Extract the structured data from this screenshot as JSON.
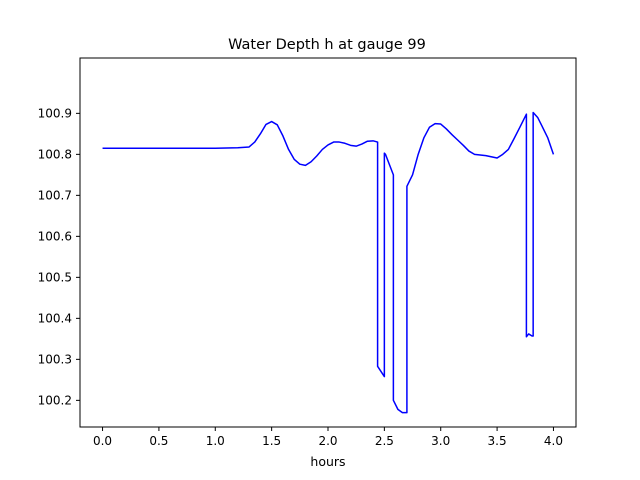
{
  "chart_data": {
    "type": "line",
    "title": "Water Depth h at gauge 99",
    "xlabel": "hours",
    "ylabel": "",
    "xlim": [
      -0.2,
      4.2
    ],
    "ylim": [
      100.135,
      101.035
    ],
    "x_ticks": [
      0.0,
      0.5,
      1.0,
      1.5,
      2.0,
      2.5,
      3.0,
      3.5,
      4.0
    ],
    "x_tick_labels": [
      "0.0",
      "0.5",
      "1.0",
      "1.5",
      "2.0",
      "2.5",
      "3.0",
      "3.5",
      "4.0"
    ],
    "y_ticks": [
      100.2,
      100.3,
      100.4,
      100.5,
      100.6,
      100.7,
      100.8,
      100.9
    ],
    "y_tick_labels": [
      "100.2",
      "100.3",
      "100.4",
      "100.5",
      "100.6",
      "100.7",
      "100.8",
      "100.9"
    ],
    "grid": false,
    "series": [
      {
        "color": "#0000ff",
        "x": [
          0.0,
          0.5,
          1.0,
          1.2,
          1.3,
          1.35,
          1.4,
          1.45,
          1.5,
          1.55,
          1.6,
          1.65,
          1.7,
          1.75,
          1.8,
          1.85,
          1.9,
          1.95,
          2.0,
          2.05,
          2.1,
          2.15,
          2.2,
          2.25,
          2.3,
          2.35,
          2.4,
          2.44,
          2.44,
          2.5,
          2.5,
          2.51,
          2.58,
          2.58,
          2.62,
          2.66,
          2.7,
          2.7,
          2.75,
          2.8,
          2.85,
          2.9,
          2.95,
          3.0,
          3.05,
          3.1,
          3.15,
          3.2,
          3.25,
          3.3,
          3.4,
          3.5,
          3.55,
          3.6,
          3.65,
          3.7,
          3.76,
          3.76,
          3.78,
          3.81,
          3.82,
          3.82,
          3.86,
          3.9,
          3.95,
          4.0
        ],
        "y": [
          100.815,
          100.815,
          100.815,
          100.816,
          100.818,
          100.83,
          100.85,
          100.873,
          100.88,
          100.872,
          100.845,
          100.812,
          100.788,
          100.776,
          100.773,
          100.782,
          100.796,
          100.812,
          100.823,
          100.83,
          100.83,
          100.827,
          100.822,
          100.82,
          100.825,
          100.832,
          100.833,
          100.83,
          100.283,
          100.258,
          100.803,
          100.8,
          100.75,
          100.2,
          100.178,
          100.17,
          100.17,
          100.722,
          100.75,
          100.8,
          100.84,
          100.866,
          100.875,
          100.874,
          100.862,
          100.848,
          100.835,
          100.822,
          100.808,
          100.8,
          100.797,
          100.791,
          100.8,
          100.812,
          100.838,
          100.865,
          100.898,
          100.355,
          100.362,
          100.357,
          100.357,
          100.902,
          100.89,
          100.868,
          100.84,
          100.8
        ]
      }
    ]
  }
}
